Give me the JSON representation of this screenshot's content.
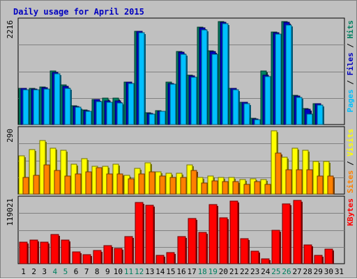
{
  "chart_data": {
    "type": "bar",
    "title": "Daily usage for April 2015",
    "days": [
      "1",
      "2",
      "3",
      "4",
      "5",
      "6",
      "7",
      "8",
      "9",
      "10",
      "11",
      "12",
      "13",
      "14",
      "15",
      "16",
      "17",
      "18",
      "19",
      "20",
      "21",
      "22",
      "23",
      "24",
      "25",
      "26",
      "27",
      "28",
      "29",
      "30",
      "31"
    ],
    "weekend_days": [
      "4",
      "5",
      "11",
      "12",
      "18",
      "19",
      "25",
      "26"
    ],
    "panels": [
      {
        "id": "hits",
        "max_label": "2216",
        "ymax": 2216,
        "axis_parts": [
          {
            "text": "Pages",
            "color": "#00c0ff"
          },
          {
            "text": " / ",
            "color": "#000000"
          },
          {
            "text": "Files",
            "color": "#0000c0"
          },
          {
            "text": " / ",
            "color": "#000000"
          },
          {
            "text": "Hits",
            "color": "#008060"
          }
        ],
        "series": [
          {
            "name": "Hits",
            "color": "#008060",
            "values": [
              780,
              770,
              800,
              1150,
              850,
              400,
              310,
              540,
              560,
              560,
              910,
              2000,
              250,
              300,
              900,
              1560,
              1050,
              2080,
              1580,
              2200,
              780,
              480,
              130,
              1140,
              1980,
              2200,
              620,
              340,
              450,
              0,
              0
            ]
          },
          {
            "name": "Files",
            "color": "#0000c0",
            "values": [
              770,
              760,
              790,
              1120,
              820,
              390,
              300,
              530,
              500,
              500,
              900,
              1990,
              240,
              280,
              880,
              1550,
              1040,
              2070,
              1560,
              2190,
              770,
              470,
              120,
              1050,
              1960,
              2190,
              610,
              330,
              440,
              0,
              0
            ]
          },
          {
            "name": "Pages",
            "color": "#00c0ff",
            "values": [
              740,
              740,
              760,
              1080,
              780,
              370,
              290,
              490,
              480,
              460,
              880,
              1960,
              230,
              280,
              860,
              1500,
              1010,
              2030,
              1500,
              2160,
              740,
              440,
              110,
              1030,
              1940,
              2130,
              580,
              230,
              420,
              0,
              0
            ]
          }
        ]
      },
      {
        "id": "visits",
        "max_label": "290",
        "ymax": 290,
        "axis_parts": [
          {
            "text": "Sites",
            "color": "#ff8000"
          },
          {
            "text": " / ",
            "color": "#000000"
          },
          {
            "text": "Visits",
            "color": "#ffff00"
          }
        ],
        "series": [
          {
            "name": "Visits",
            "color": "#ffff00",
            "values": [
              170,
              200,
              240,
              205,
              195,
              135,
              160,
              125,
              125,
              135,
              85,
              115,
              140,
              100,
              95,
              95,
              130,
              75,
              80,
              75,
              75,
              65,
              70,
              65,
              285,
              165,
              205,
              195,
              145,
              145,
              0
            ]
          },
          {
            "name": "Sites",
            "color": "#ff8000",
            "values": [
              75,
              85,
              130,
              105,
              80,
              90,
              100,
              120,
              90,
              90,
              70,
              90,
              100,
              80,
              75,
              75,
              105,
              50,
              60,
              55,
              55,
              45,
              55,
              45,
              185,
              110,
              110,
              110,
              80,
              80,
              0
            ]
          }
        ]
      },
      {
        "id": "kbytes",
        "max_label": "119021",
        "ymax": 119021,
        "axis_parts": [
          {
            "text": "KBytes",
            "color": "#ff0000"
          }
        ],
        "series": [
          {
            "name": "KBytes",
            "color": "#ff0000",
            "values": [
              40000,
              44000,
              40000,
              54000,
              43000,
              22000,
              17000,
              24000,
              33000,
              28000,
              50000,
              112000,
              108000,
              15000,
              21000,
              50000,
              83000,
              57000,
              109000,
              85000,
              115000,
              46000,
              23000,
              9000,
              62000,
              110000,
              117000,
              34000,
              15000,
              27000,
              0
            ]
          }
        ]
      }
    ]
  }
}
